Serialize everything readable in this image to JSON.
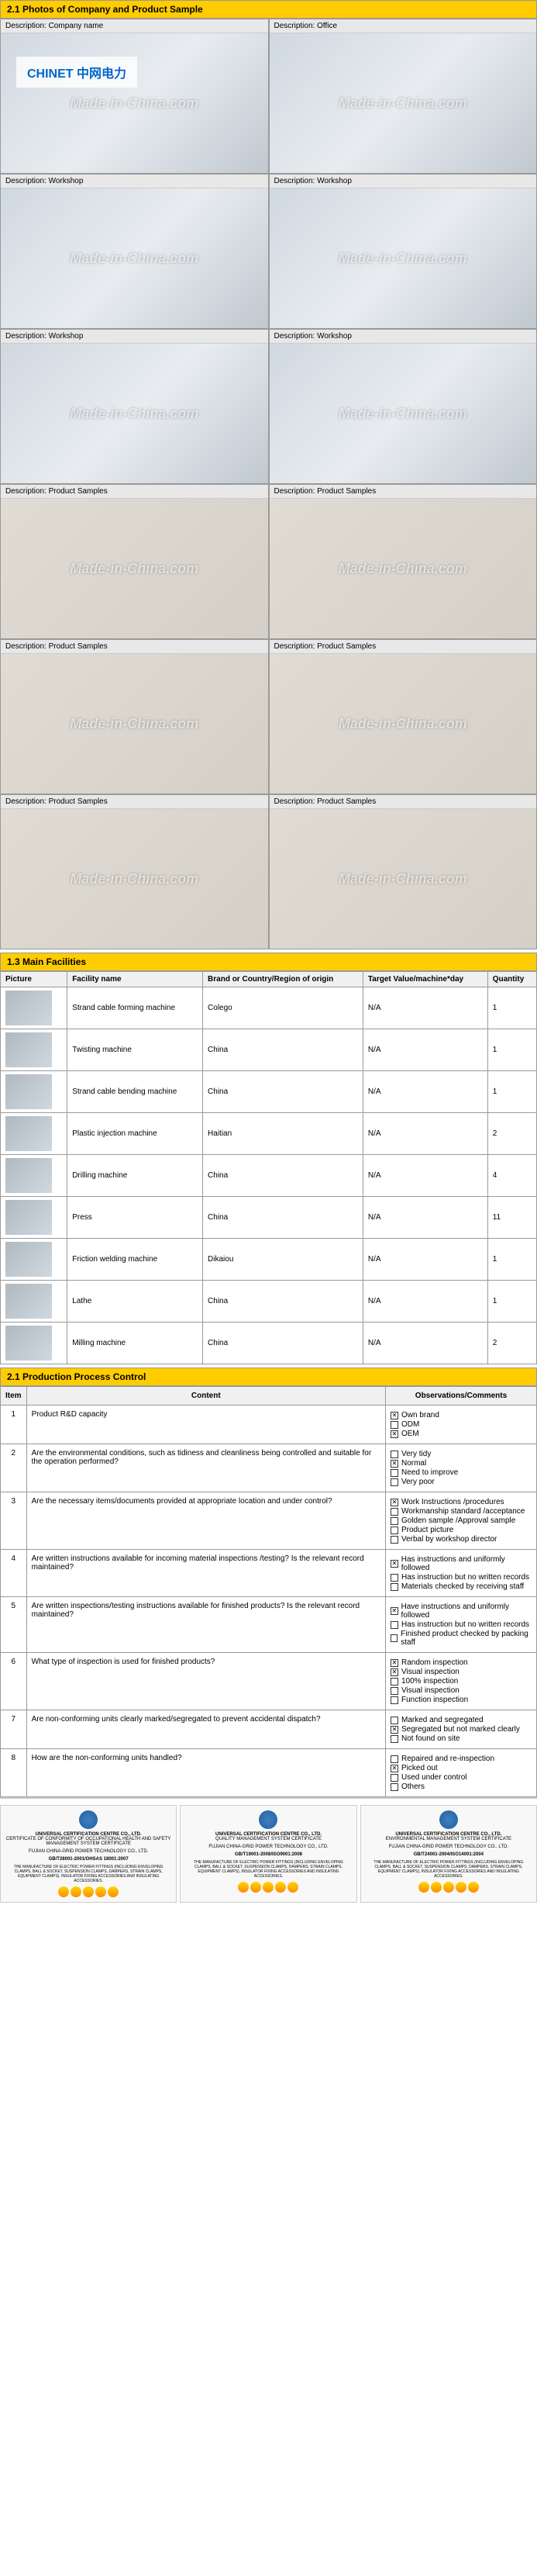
{
  "watermark": "Made-in-China.com",
  "section1": {
    "title": "2.1 Photos of Company and Product Sample",
    "photos": [
      {
        "label": "Description: Company name",
        "brand": "CHINET 中网电力"
      },
      {
        "label": "Description: Office"
      },
      {
        "label": "Description: Workshop"
      },
      {
        "label": "Description: Workshop"
      },
      {
        "label": "Description: Workshop"
      },
      {
        "label": "Description: Workshop"
      },
      {
        "label": "Description: Product Samples"
      },
      {
        "label": "Description: Product Samples"
      },
      {
        "label": "Description: Product Samples"
      },
      {
        "label": "Description: Product Samples"
      },
      {
        "label": "Description: Product Samples"
      },
      {
        "label": "Description: Product Samples"
      }
    ]
  },
  "section2": {
    "title": "1.3 Main Facilities",
    "headers": [
      "Picture",
      "Facility name",
      "Brand or Country/Region of origin",
      "Target Value/machine*day",
      "Quantity"
    ],
    "rows": [
      {
        "name": "Strand cable forming machine",
        "brand": "Colego",
        "target": "N/A",
        "qty": "1"
      },
      {
        "name": "Twisting machine",
        "brand": "China",
        "target": "N/A",
        "qty": "1"
      },
      {
        "name": "Strand cable bending machine",
        "brand": "China",
        "target": "N/A",
        "qty": "1"
      },
      {
        "name": "Plastic injection machine",
        "brand": "Haitian",
        "target": "N/A",
        "qty": "2"
      },
      {
        "name": "Drilling machine",
        "brand": "China",
        "target": "N/A",
        "qty": "4"
      },
      {
        "name": "Press",
        "brand": "China",
        "target": "N/A",
        "qty": "11"
      },
      {
        "name": "Friction welding machine",
        "brand": "Dikaiou",
        "target": "N/A",
        "qty": "1"
      },
      {
        "name": "Lathe",
        "brand": "China",
        "target": "N/A",
        "qty": "1"
      },
      {
        "name": "Milling machine",
        "brand": "China",
        "target": "N/A",
        "qty": "2"
      }
    ]
  },
  "section3": {
    "title": "2.1 Production Process Control",
    "headers": [
      "Item",
      "Content",
      "Observations/Comments"
    ],
    "rows": [
      {
        "n": "1",
        "content": "Product R&D capacity",
        "opts": [
          {
            "t": "Own brand",
            "c": true
          },
          {
            "t": "ODM",
            "c": false
          },
          {
            "t": "OEM",
            "c": true
          }
        ]
      },
      {
        "n": "2",
        "content": "Are the environmental conditions, such as tidiness and cleanliness being controlled and suitable for the operation performed?",
        "opts": [
          {
            "t": "Very tidy",
            "c": false
          },
          {
            "t": "Normal",
            "c": true
          },
          {
            "t": "Need to improve",
            "c": false
          },
          {
            "t": "Very poor",
            "c": false
          }
        ]
      },
      {
        "n": "3",
        "content": "Are the necessary items/documents provided at appropriate location and under control?",
        "opts": [
          {
            "t": "Work Instructions /procedures",
            "c": true
          },
          {
            "t": "Workmanship standard /acceptance",
            "c": false
          },
          {
            "t": "Golden sample /Approval sample",
            "c": false
          },
          {
            "t": "Product picture",
            "c": false
          },
          {
            "t": "Verbal by workshop director",
            "c": false
          }
        ]
      },
      {
        "n": "4",
        "content": "Are written instructions available for incoming material inspections /testing? Is the relevant record maintained?",
        "opts": [
          {
            "t": "Has instructions and uniformly followed",
            "c": true
          },
          {
            "t": "Has instruction but no written records",
            "c": false
          },
          {
            "t": "Materials checked by receiving staff",
            "c": false
          }
        ]
      },
      {
        "n": "5",
        "content": "Are written inspections/testing instructions available for finished products? Is the relevant record maintained?",
        "opts": [
          {
            "t": "Have instructions and uniformly followed",
            "c": true
          },
          {
            "t": "Has instruction but no written records",
            "c": false
          },
          {
            "t": "Finished product checked by packing staff",
            "c": false
          }
        ]
      },
      {
        "n": "6",
        "content": "What type of inspection is used for finished products?",
        "opts": [
          {
            "t": "Random inspection",
            "c": true
          },
          {
            "t": "Visual inspection",
            "c": true
          },
          {
            "t": "100% inspection",
            "c": false
          },
          {
            "t": "Visual inspection",
            "c": false
          },
          {
            "t": "Function inspection",
            "c": false
          }
        ]
      },
      {
        "n": "7",
        "content": "Are non-conforming units clearly marked/segregated to prevent accidental dispatch?",
        "opts": [
          {
            "t": "Marked and segregated",
            "c": false
          },
          {
            "t": "Segregated but not marked clearly",
            "c": true
          },
          {
            "t": "Not found on site",
            "c": false
          }
        ]
      },
      {
        "n": "8",
        "content": "How are the non-conforming units handled?",
        "opts": [
          {
            "t": "Repaired and re-inspection",
            "c": false
          },
          {
            "t": "Picked out",
            "c": true
          },
          {
            "t": "Used under control",
            "c": false
          },
          {
            "t": "Others",
            "c": false
          }
        ]
      }
    ]
  },
  "certs": [
    {
      "org": "UNIVERSAL CERTIFICATION CENTRE CO., LTD.",
      "sub": "CERTIFICATE OF CONFORMITY OF OCCUPATIONAL HEALTH AND SAFETY MANAGEMENT SYSTEM CERTIFICATE",
      "co": "FUJIAN CHINA-GRID POWER TECHNOLOGY CO., LTD.",
      "std": "GB/T28001-2001/OHSAS 18001:2007"
    },
    {
      "org": "UNIVERSAL CERTIFICATION CENTRE CO., LTD.",
      "sub": "QUALITY MANAGEMENT SYSTEM CERTIFICATE",
      "co": "FUJIAN CHINA-GRID POWER TECHNOLOGY CO., LTD.",
      "std": "GB/T19001-2008/ISO9001:2008"
    },
    {
      "org": "UNIVERSAL CERTIFICATION CENTRE CO., LTD.",
      "sub": "ENVIRONMENTAL MANAGEMENT SYSTEM CERTIFICATE",
      "co": "FUJIAN CHINA-GRID POWER TECHNOLOGY CO., LTD.",
      "std": "GB/T24001-2004/ISO14001:2004"
    }
  ]
}
